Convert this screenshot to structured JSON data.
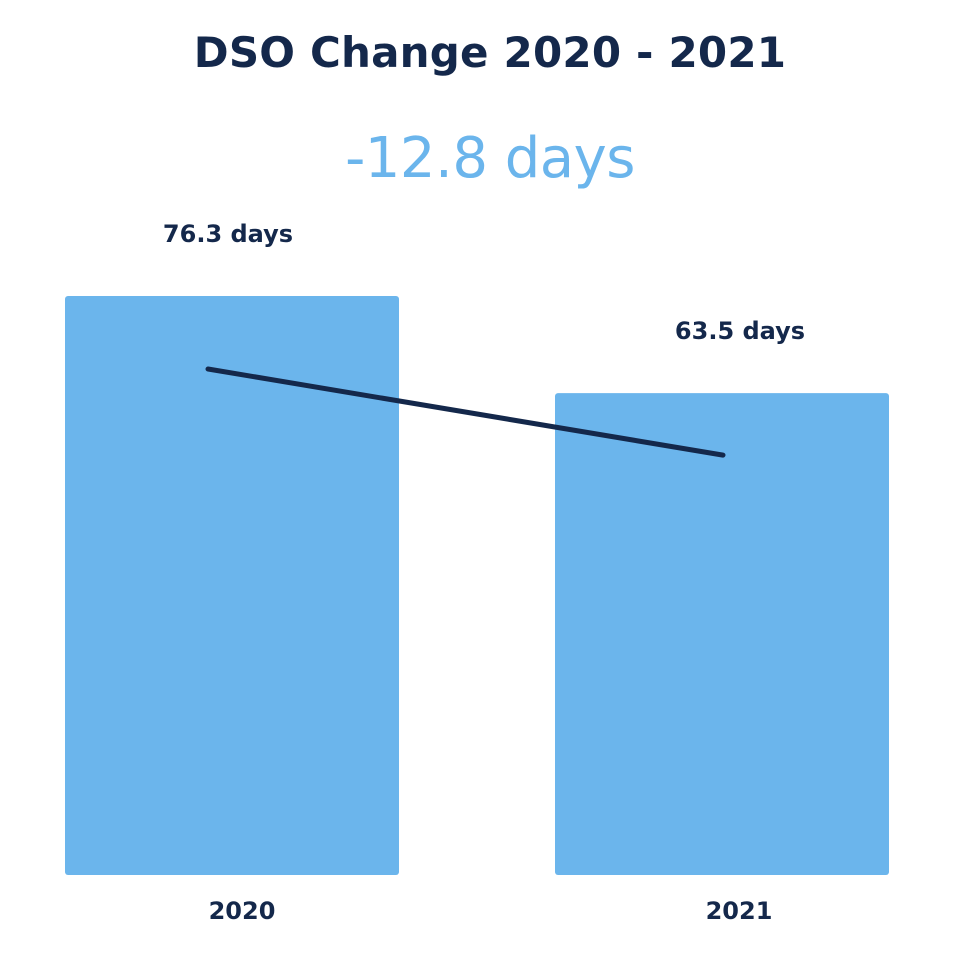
{
  "chart_data": {
    "type": "bar",
    "title": "DSO Change 2020 - 2021",
    "subtitle": "-12.8 days",
    "categories": [
      "2020",
      "2021"
    ],
    "values": [
      76.3,
      63.5
    ],
    "value_labels": [
      "76.3 days",
      "63.5 days"
    ],
    "xlabel": "",
    "ylabel": "",
    "ylim": [
      0,
      76.3
    ],
    "grid": false,
    "trend_line": true
  },
  "colors": {
    "bar": "#6bb5ec",
    "text_dark": "#14284b",
    "accent": "#6bb5ec",
    "trend_line": "#14284b"
  }
}
